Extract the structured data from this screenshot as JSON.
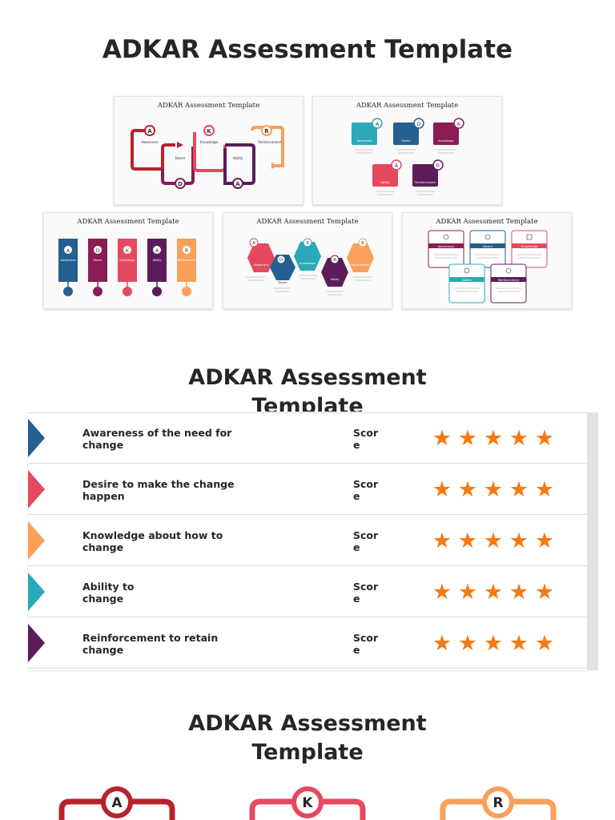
{
  "page_title": "ADKAR Assessment Template",
  "thumb_title": "ADKAR Assessment Template",
  "section2_title": "ADKAR Assessment Template",
  "section3_title": "ADKAR Assessment Template",
  "thumb1": {
    "steps": [
      {
        "letter": "A",
        "label": "Awareness"
      },
      {
        "letter": "D",
        "label": "Desire"
      },
      {
        "letter": "K",
        "label": "Knowledge"
      },
      {
        "letter": "A",
        "label": "Ability"
      },
      {
        "letter": "R",
        "label": "Reinforcement"
      }
    ]
  },
  "thumb2": {
    "steps": [
      {
        "letter": "A",
        "label": "Awareness"
      },
      {
        "letter": "D",
        "label": "Desire"
      },
      {
        "letter": "K",
        "label": "Knowledge"
      },
      {
        "letter": "A",
        "label": "Ability"
      },
      {
        "letter": "R",
        "label": "Reinforcement"
      }
    ]
  },
  "thumb3": {
    "steps": [
      {
        "letter": "A",
        "label": "Awareness"
      },
      {
        "letter": "D",
        "label": "Desire"
      },
      {
        "letter": "K",
        "label": "Knowledge"
      },
      {
        "letter": "A",
        "label": "Ability"
      },
      {
        "letter": "R",
        "label": "Reinforcement"
      }
    ]
  },
  "thumb4": {
    "steps": [
      {
        "letter": "A",
        "label": "Awareness"
      },
      {
        "letter": "D",
        "label": "Desire"
      },
      {
        "letter": "K",
        "label": "Knowledge"
      },
      {
        "letter": "A",
        "label": "Ability"
      },
      {
        "letter": "R",
        "label": "Reinforcement"
      }
    ]
  },
  "thumb5": {
    "labels": [
      "Awareness",
      "Desire",
      "Knowledge",
      "Ability",
      "Reinforcement"
    ]
  },
  "assessment": {
    "score_label": "Score",
    "rows": [
      {
        "label": "Awareness of the need for change",
        "color": "#245f8f",
        "stars": 5
      },
      {
        "label": "Desire to make the change happen",
        "color": "#e5495f",
        "stars": 5
      },
      {
        "label": "Knowledge about how to change",
        "color": "#f9a05a",
        "stars": 5
      },
      {
        "label": "Ability to change",
        "color": "#2aa9b9",
        "stars": 5
      },
      {
        "label": "Reinforcement to retain change",
        "color": "#5a1d5a",
        "stars": 5
      }
    ]
  },
  "bottom_cards": [
    {
      "letter": "A",
      "color": "#b8232b"
    },
    {
      "letter": "K",
      "color": "#e5495f"
    },
    {
      "letter": "R",
      "color": "#f9a05a"
    }
  ],
  "colors": {
    "red": "#b8232b",
    "magenta": "#8b1c55",
    "pink": "#e5495f",
    "purple": "#5a1d5a",
    "orange": "#f9a05a",
    "teal": "#2aa9b9",
    "blue": "#245f8f",
    "star": "#f57a12"
  }
}
